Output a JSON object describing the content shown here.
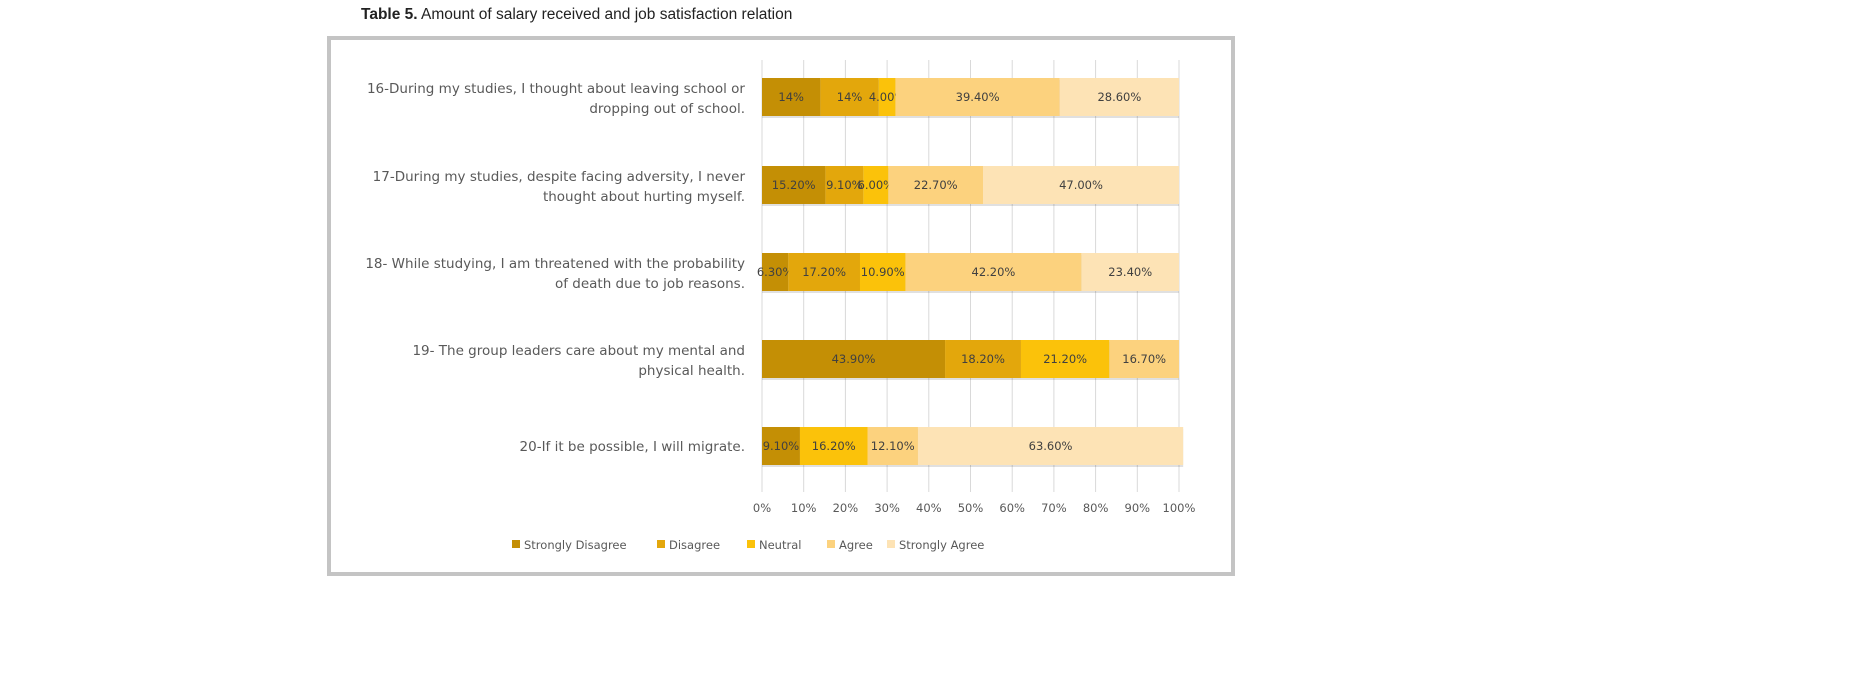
{
  "caption": {
    "label": "Table 5.",
    "text": " Amount of salary received and job satisfaction relation"
  },
  "chart_data": {
    "type": "bar",
    "orientation": "horizontal",
    "stacked": "100%",
    "categories": [
      "16-During my studies, I thought about leaving school or|dropping out of school.",
      "17-During my studies, despite facing adversity, I never|thought about hurting myself.",
      "18- While studying, I am threatened with the probability|of death due to job reasons.",
      "19- The group leaders care about my mental and|physical health.",
      "20-If it be possible, I will migrate."
    ],
    "series": [
      {
        "name": "Strongly Disagree",
        "color": "#c48f05",
        "values": [
          14,
          15.2,
          6.3,
          43.9,
          9.1
        ],
        "labels": [
          "14%",
          "15.20%",
          "6.30%",
          "43.90%",
          "9.10%"
        ]
      },
      {
        "name": "Disagree",
        "color": "#e3a70c",
        "values": [
          14,
          9.1,
          17.2,
          18.2,
          0
        ],
        "labels": [
          "14%",
          "9.10%",
          "17.20%",
          "18.20%",
          ""
        ]
      },
      {
        "name": "Neutral",
        "color": "#fbc20a",
        "values": [
          4,
          6,
          10.9,
          21.2,
          16.2
        ],
        "labels": [
          "4.00%",
          "6.00%",
          "10.90%",
          "21.20%",
          "16.20%"
        ]
      },
      {
        "name": "Agree",
        "color": "#fcd27e",
        "values": [
          39.4,
          22.7,
          42.2,
          16.7,
          12.1
        ],
        "labels": [
          "39.40%",
          "22.70%",
          "42.20%",
          "16.70%",
          "12.10%"
        ]
      },
      {
        "name": "Strongly Agree",
        "color": "#fde3b5",
        "values": [
          28.6,
          47,
          23.4,
          0,
          63.6
        ],
        "labels": [
          "28.60%",
          "47.00%",
          "23.40%",
          "",
          "63.60%"
        ]
      }
    ],
    "xticks": [
      "0%",
      "10%",
      "20%",
      "30%",
      "40%",
      "50%",
      "60%",
      "70%",
      "80%",
      "90%",
      "100%"
    ],
    "xlim": [
      0,
      100
    ],
    "grid": "vertical",
    "legend": "bottom"
  }
}
